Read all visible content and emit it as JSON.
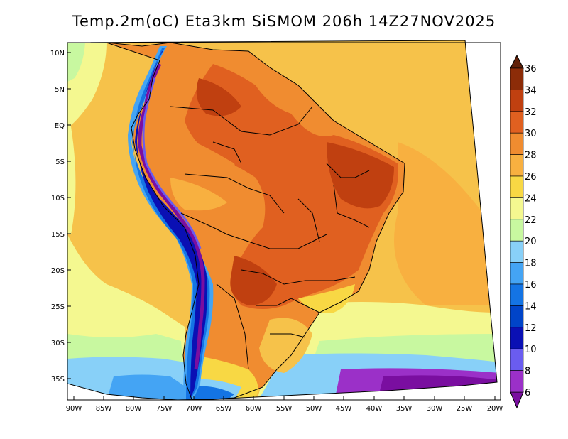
{
  "title": "Temp.2m(oC) Eta3km SiSMOM 206h 14Z27NOV2025",
  "map": {
    "variable": "2 m temperature",
    "units": "oC",
    "model": "Eta3km",
    "forecast_hour": "206h",
    "valid_time": "14Z27NOV2025",
    "lat_ticks": [
      "10N",
      "5N",
      "EQ",
      "5S",
      "10S",
      "15S",
      "20S",
      "25S",
      "30S",
      "35S"
    ],
    "lon_ticks": [
      "90W",
      "85W",
      "80W",
      "75W",
      "70W",
      "65W",
      "60W",
      "55W",
      "50W",
      "45W",
      "40W",
      "35W",
      "30W",
      "25W",
      "20W"
    ]
  },
  "colorbar": {
    "labels": [
      "6",
      "8",
      "10",
      "12",
      "14",
      "16",
      "18",
      "20",
      "22",
      "24",
      "26",
      "28",
      "30",
      "32",
      "34",
      "36"
    ],
    "colors": [
      "#7a0ea0",
      "#9b30c8",
      "#6a5cf0",
      "#0a10b4",
      "#0044c8",
      "#1474e4",
      "#44a4f4",
      "#88d0f8",
      "#c8f8a0",
      "#f4f890",
      "#f8d844",
      "#f8b040",
      "#f08c30",
      "#e06020",
      "#c04010",
      "#8c2c08",
      "#602008"
    ]
  }
}
